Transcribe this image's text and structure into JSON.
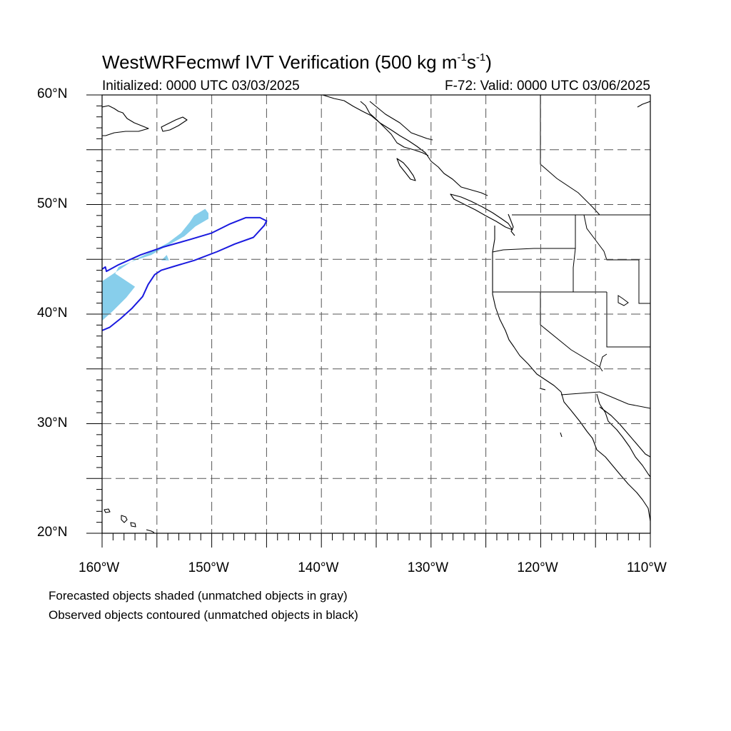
{
  "figure": {
    "model": "WestWRFecmwf",
    "title_prefix": "WestWRFecmwf IVT Verification (500 kg m",
    "title_sup1": "-1",
    "title_mid": "s",
    "title_sup2": "-1",
    "title_suffix": ")",
    "initialized_label": "Initialized: 0000 UTC 03/03/2025",
    "valid_label": "F-72: Valid: 0000 UTC 03/06/2025",
    "footnote_forecast": "Forecasted objects shaded (unmatched objects in gray)",
    "footnote_observed": "Observed objects contoured (unmatched objects in black)"
  },
  "map": {
    "lon_range": [
      -160,
      -110
    ],
    "lat_range": [
      20,
      60
    ],
    "grid": "dashed",
    "lat_ticks": [
      {
        "lat": 60,
        "label": "60°N"
      },
      {
        "lat": 50,
        "label": "50°N"
      },
      {
        "lat": 40,
        "label": "40°N"
      },
      {
        "lat": 30,
        "label": "30°N"
      },
      {
        "lat": 20,
        "label": "20°N"
      }
    ],
    "lon_ticks": [
      {
        "lon": -160,
        "label": "160°W"
      },
      {
        "lon": -150,
        "label": "150°W"
      },
      {
        "lon": -140,
        "label": "140°W"
      },
      {
        "lon": -130,
        "label": "130°W"
      },
      {
        "lon": -120,
        "label": "120°W"
      },
      {
        "lon": -110,
        "label": "110°W"
      }
    ],
    "colors": {
      "forecast_fill": "#87ceeb",
      "observed_contour": "#1a1adf",
      "coastline": "#000000",
      "grid": "#555555"
    }
  },
  "objects": {
    "forecast_shaded": [
      [
        [
          -160,
          43
        ],
        [
          -158.5,
          44
        ],
        [
          -157,
          45
        ],
        [
          -155.5,
          45.7
        ],
        [
          -154,
          46.5
        ],
        [
          -152.8,
          47.4
        ],
        [
          -152,
          48.4
        ],
        [
          -151.6,
          49
        ],
        [
          -150.6,
          49.6
        ],
        [
          -150.3,
          49.2
        ],
        [
          -150.3,
          48.7
        ],
        [
          -151.5,
          48
        ],
        [
          -152.5,
          47.1
        ],
        [
          -154.5,
          46
        ],
        [
          -155.5,
          45.4
        ],
        [
          -157,
          44.9
        ],
        [
          -158.5,
          44.3
        ],
        [
          -158.8,
          43.7
        ],
        [
          -157,
          42.5
        ],
        [
          -157.8,
          41.5
        ],
        [
          -159,
          40.3
        ],
        [
          -160,
          39.4
        ]
      ],
      [
        [
          -154.6,
          44.9
        ],
        [
          -154.1,
          45.4
        ],
        [
          -153.9,
          44.9
        ]
      ]
    ],
    "observed_contour": [
      [
        [
          -160,
          38.5
        ],
        [
          -159.3,
          38.8
        ],
        [
          -158.3,
          39.6
        ],
        [
          -157.3,
          40.5
        ],
        [
          -156.3,
          41.6
        ],
        [
          -155.8,
          42.7
        ],
        [
          -155.2,
          43.6
        ],
        [
          -154.6,
          44
        ],
        [
          -153.3,
          44.4
        ],
        [
          -151.6,
          44.9
        ],
        [
          -149.5,
          45.7
        ],
        [
          -147.9,
          46.4
        ],
        [
          -146.2,
          47
        ],
        [
          -145.2,
          48.1
        ],
        [
          -145,
          48.5
        ],
        [
          -145.6,
          48.8
        ],
        [
          -146.9,
          48.8
        ],
        [
          -148.4,
          48.2
        ],
        [
          -150,
          47.4
        ],
        [
          -152,
          46.8
        ],
        [
          -154.5,
          46.1
        ],
        [
          -156.5,
          45.4
        ],
        [
          -158.5,
          44.5
        ],
        [
          -159.6,
          43.9
        ],
        [
          -159.7,
          44.3
        ],
        [
          -160,
          44.1
        ]
      ]
    ]
  }
}
